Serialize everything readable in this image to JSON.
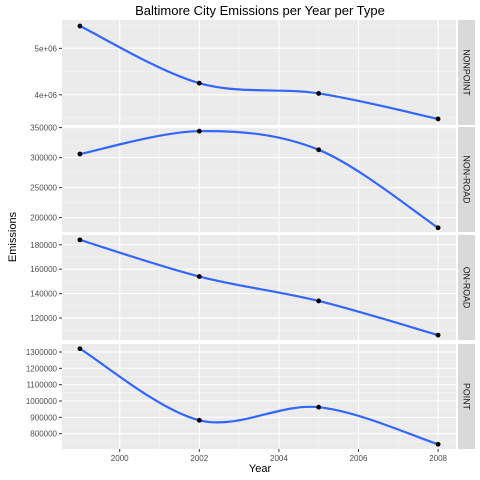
{
  "chart_data": {
    "type": "line",
    "title": "Baltimore City Emissions per Year per Type",
    "xlabel": "Year",
    "ylabel": "Emissions",
    "facet_layout": "stacked rows, strip labels on right",
    "grid": true,
    "colors": {
      "line": "#3366FF",
      "point": "#000000",
      "panel_bg": "#EBEBEB",
      "grid_major": "#FFFFFF",
      "strip_bg": "#D9D9D9"
    },
    "x": {
      "values": [
        1999,
        2002,
        2005,
        2008
      ],
      "ticks": [
        2000,
        2002,
        2004,
        2006,
        2008
      ],
      "tick_labels": [
        "2000",
        "2002",
        "2004",
        "2006",
        "2008"
      ],
      "lim": [
        1998.55,
        2008.45
      ]
    },
    "panels": [
      {
        "strip": "NONPOINT",
        "values": [
          5480000,
          4250000,
          4030000,
          3480000
        ],
        "ylim": [
          3350000,
          5610000
        ],
        "ticks": [
          3000000,
          4000000,
          5000000
        ],
        "tick_labels": [
          "3e+06",
          "4e+06",
          "5e+06"
        ]
      },
      {
        "strip": "NON-ROAD",
        "values": [
          306000,
          344000,
          313000,
          183000
        ],
        "ylim": [
          176000,
          351000
        ],
        "ticks": [
          200000,
          250000,
          300000,
          350000
        ],
        "tick_labels": [
          "200000",
          "250000",
          "300000",
          "350000"
        ]
      },
      {
        "strip": "ON-ROAD",
        "values": [
          184000,
          154000,
          134000,
          106000
        ],
        "ylim": [
          102000,
          188000
        ],
        "ticks": [
          120000,
          140000,
          160000,
          180000
        ],
        "tick_labels": [
          "120000",
          "140000",
          "160000",
          "180000"
        ]
      },
      {
        "strip": "POINT",
        "values": [
          1320000,
          882000,
          962000,
          735000
        ],
        "ylim": [
          706000,
          1349000
        ],
        "ticks": [
          800000,
          900000,
          1000000,
          1100000,
          1200000,
          1300000
        ],
        "tick_labels": [
          "800000",
          "900000",
          "1000000",
          "1100000",
          "1200000",
          "1300000"
        ]
      }
    ]
  }
}
